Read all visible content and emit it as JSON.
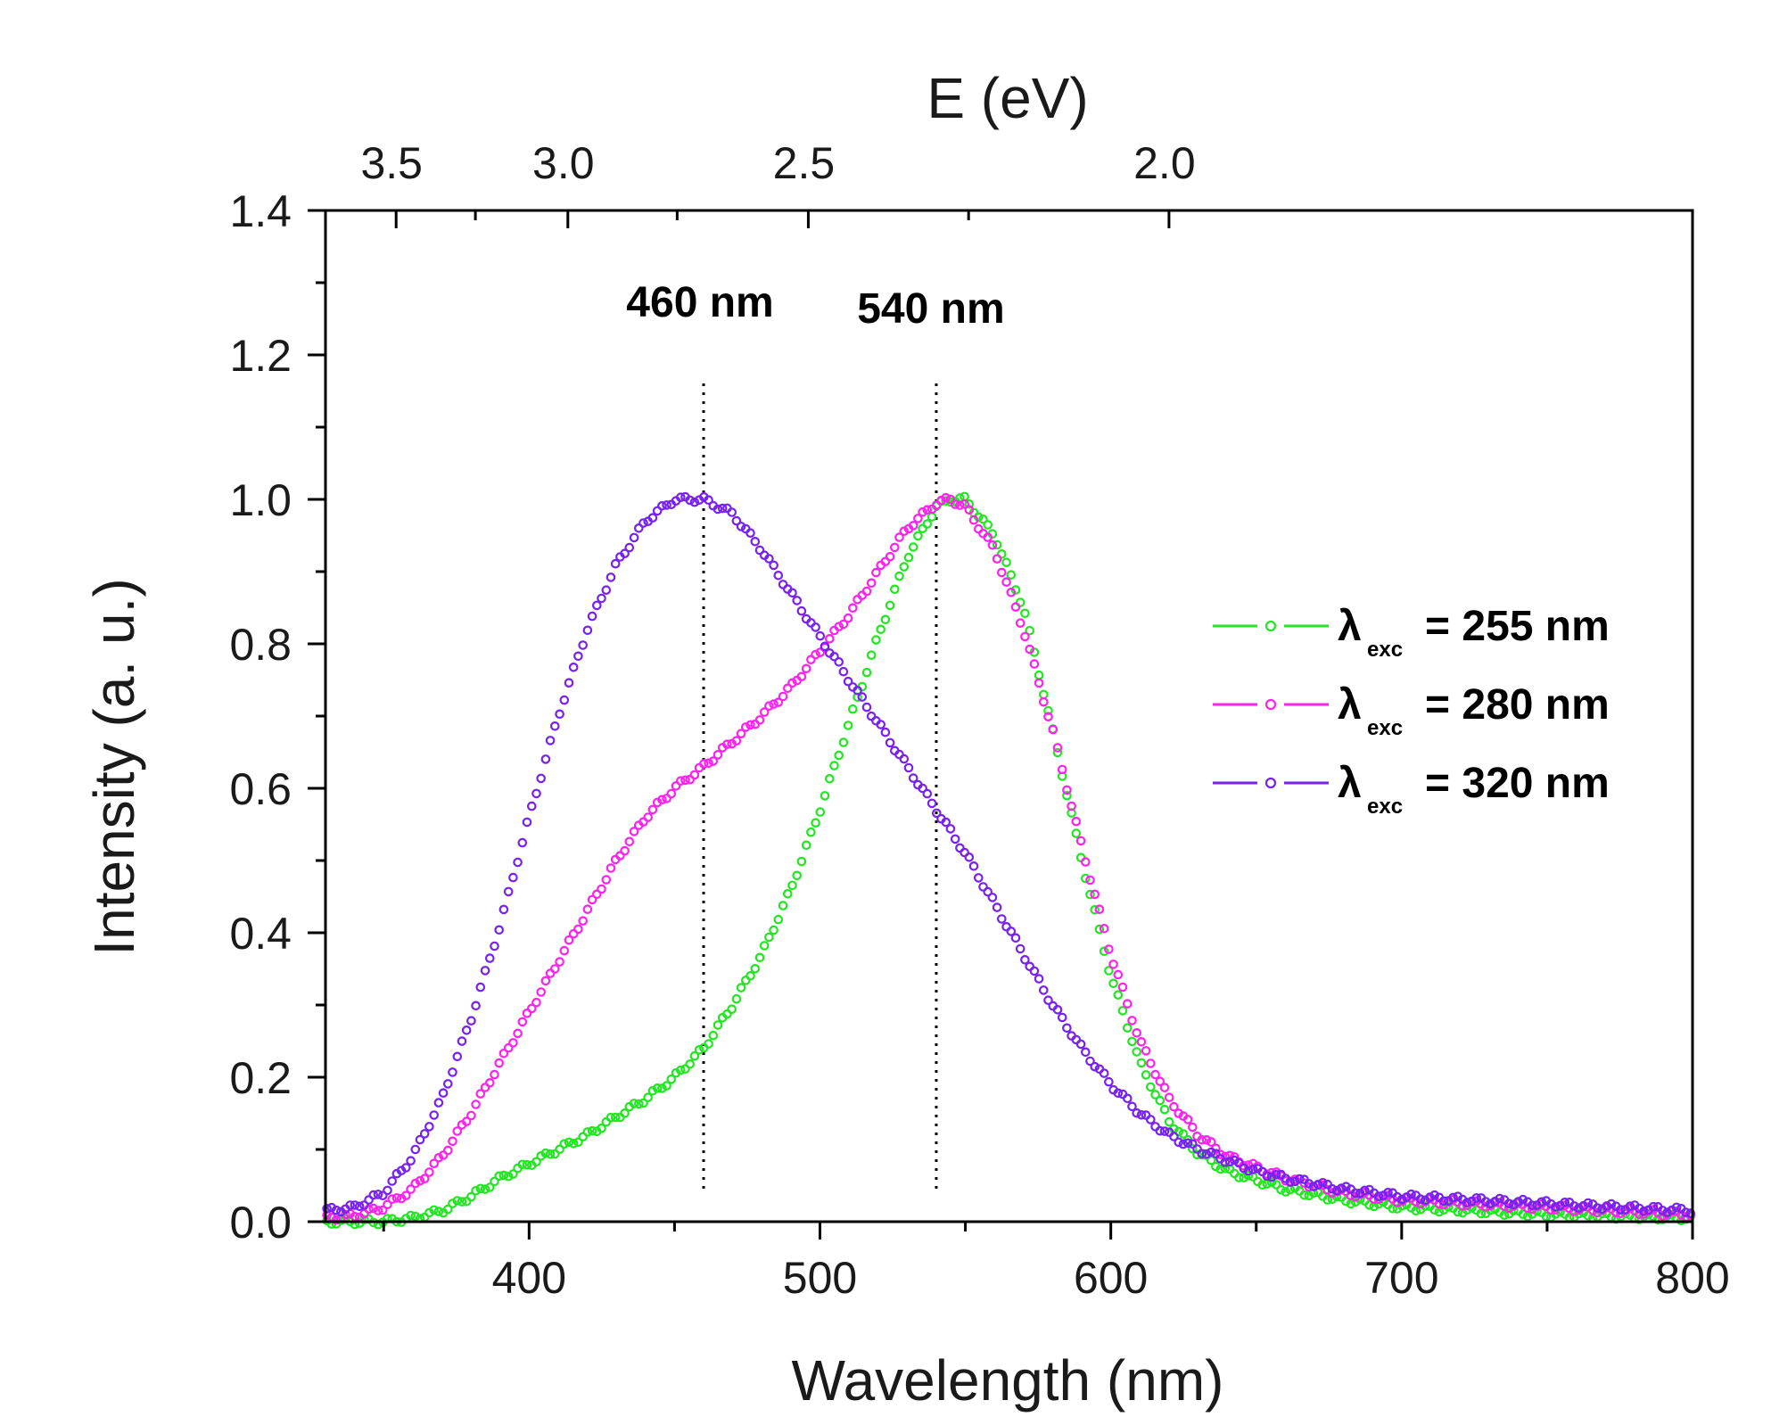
{
  "chart_data": {
    "type": "scatter",
    "xlabel": "Wavelength (nm)",
    "ylabel": "Intensity (a. u.)",
    "top_xlabel": "E (eV)",
    "xlim": [
      330,
      800
    ],
    "ylim": [
      0,
      1.4
    ],
    "x_ticks": [
      400,
      500,
      600,
      700,
      800
    ],
    "y_ticks": [
      0.0,
      0.2,
      0.4,
      0.6,
      0.8,
      1.0,
      1.2,
      1.4
    ],
    "y_tick_labels": [
      "0.0",
      "0.2",
      "0.4",
      "0.6",
      "0.8",
      "1.0",
      "1.2",
      "1.4"
    ],
    "top_ticks": [
      {
        "value": 3.5,
        "label": "3.5"
      },
      {
        "value": 3.0,
        "label": "3.0"
      },
      {
        "value": 2.5,
        "label": "2.5"
      },
      {
        "value": 2.0,
        "label": "2.0"
      }
    ],
    "annotations": [
      {
        "x": 460,
        "label": "460 nm"
      },
      {
        "x": 540,
        "label": "540 nm"
      }
    ],
    "legend_position": "right",
    "series": [
      {
        "name_main": "λ",
        "name_sub": "exc",
        "name_rest": "= 255 nm",
        "color": "#22e622",
        "x": [
          330,
          340,
          350,
          360,
          370,
          380,
          390,
          400,
          410,
          420,
          430,
          440,
          450,
          460,
          470,
          480,
          490,
          500,
          510,
          520,
          530,
          540,
          545,
          550,
          560,
          570,
          580,
          590,
          600,
          610,
          620,
          630,
          640,
          660,
          680,
          700,
          750,
          800
        ],
        "y": [
          0.0,
          0.0,
          0.0,
          0.005,
          0.015,
          0.035,
          0.06,
          0.08,
          0.1,
          0.12,
          0.145,
          0.17,
          0.2,
          0.24,
          0.3,
          0.37,
          0.46,
          0.57,
          0.69,
          0.81,
          0.92,
          0.99,
          1.0,
          1.0,
          0.95,
          0.85,
          0.68,
          0.5,
          0.34,
          0.22,
          0.14,
          0.095,
          0.07,
          0.045,
          0.03,
          0.02,
          0.01,
          0.005
        ]
      },
      {
        "name_main": "λ",
        "name_sub": "exc",
        "name_rest": "= 280 nm",
        "color": "#ff22ee",
        "x": [
          330,
          340,
          350,
          360,
          370,
          380,
          390,
          400,
          410,
          420,
          430,
          440,
          450,
          460,
          470,
          480,
          490,
          500,
          510,
          520,
          530,
          540,
          545,
          550,
          560,
          570,
          580,
          590,
          600,
          610,
          620,
          630,
          640,
          660,
          680,
          700,
          750,
          800
        ],
        "y": [
          0.005,
          0.008,
          0.02,
          0.045,
          0.09,
          0.15,
          0.22,
          0.29,
          0.36,
          0.43,
          0.5,
          0.56,
          0.6,
          0.63,
          0.665,
          0.7,
          0.74,
          0.79,
          0.84,
          0.9,
          0.96,
          0.995,
          1.0,
          0.99,
          0.93,
          0.82,
          0.68,
          0.52,
          0.37,
          0.25,
          0.17,
          0.12,
          0.09,
          0.06,
          0.04,
          0.03,
          0.02,
          0.01
        ]
      },
      {
        "name_main": "λ",
        "name_sub": "exc",
        "name_rest": "= 320 nm",
        "color": "#7722ee",
        "x": [
          330,
          340,
          350,
          360,
          370,
          380,
          390,
          400,
          410,
          420,
          430,
          440,
          450,
          460,
          470,
          480,
          490,
          500,
          510,
          520,
          530,
          540,
          550,
          560,
          570,
          580,
          590,
          600,
          610,
          620,
          630,
          640,
          650,
          660,
          680,
          700,
          750,
          800
        ],
        "y": [
          0.015,
          0.02,
          0.04,
          0.09,
          0.17,
          0.28,
          0.41,
          0.56,
          0.7,
          0.82,
          0.91,
          0.97,
          1.0,
          1.0,
          0.98,
          0.93,
          0.87,
          0.81,
          0.75,
          0.69,
          0.63,
          0.57,
          0.51,
          0.44,
          0.37,
          0.3,
          0.24,
          0.19,
          0.15,
          0.12,
          0.1,
          0.085,
          0.07,
          0.06,
          0.045,
          0.035,
          0.025,
          0.015
        ]
      }
    ]
  }
}
